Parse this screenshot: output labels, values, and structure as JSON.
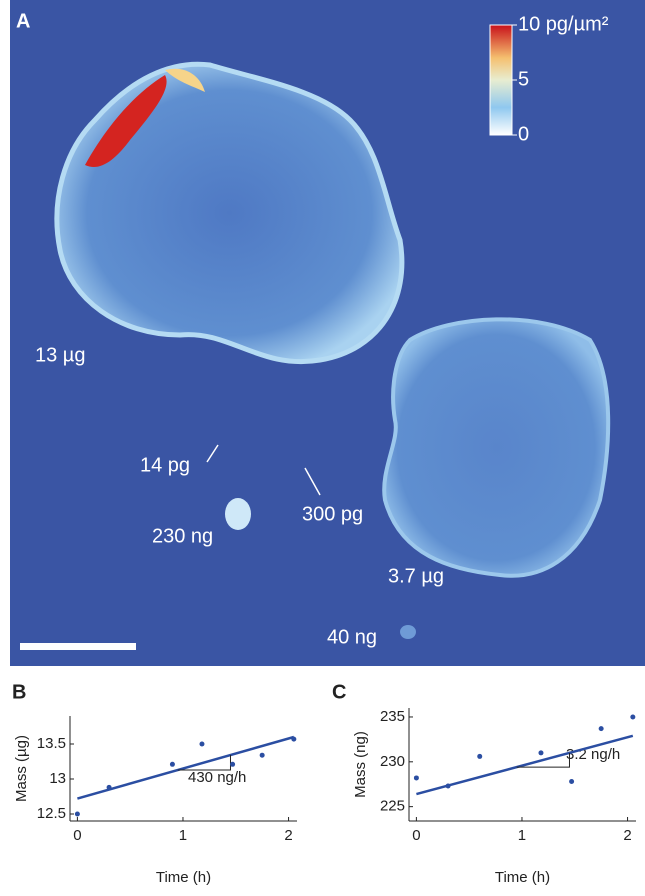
{
  "panel_a": {
    "label": "A",
    "colorbar": {
      "lim": [
        0,
        10
      ],
      "ticks": [
        0,
        5,
        {
          "value": 10,
          "label": "10 pg/µm²"
        }
      ]
    },
    "annotations": [
      "13 µg",
      "14 pg",
      "300 pg",
      "230 ng",
      "3.7 µg",
      "40 ng"
    ]
  },
  "chart_data": [
    {
      "type": "scatter",
      "label": "B",
      "xlabel": "Time (h)",
      "ylabel": "Mass (µg)",
      "color": "#2b4ea2",
      "x": [
        0,
        0.3,
        0.9,
        1.18,
        1.47,
        1.75,
        2.05
      ],
      "values": [
        12.5,
        12.88,
        13.21,
        13.5,
        13.21,
        13.34,
        13.57
      ],
      "fit": {
        "x": [
          0,
          2.05
        ],
        "values": [
          12.72,
          13.6
        ]
      },
      "annotation": "430 ng/h",
      "xlim": [
        -0.07,
        2.08
      ],
      "xticks": [
        0,
        1,
        2
      ],
      "ylim": [
        12.4,
        13.9
      ],
      "yticks": [
        12.5,
        13,
        13.5
      ]
    },
    {
      "type": "scatter",
      "label": "C",
      "xlabel": "Time (h)",
      "ylabel": "Mass (ng)",
      "color": "#2b4ea2",
      "x": [
        0,
        0.3,
        0.6,
        1.18,
        1.47,
        1.75,
        2.05
      ],
      "values": [
        228.2,
        227.3,
        230.6,
        231.0,
        227.8,
        233.7,
        235.0
      ],
      "fit": {
        "x": [
          0,
          2.05
        ],
        "values": [
          226.4,
          232.9
        ]
      },
      "annotation": "3.2 ng/h",
      "xlim": [
        -0.07,
        2.08
      ],
      "xticks": [
        0,
        1,
        2
      ],
      "ylim": [
        223.4,
        236
      ],
      "yticks": [
        225,
        230,
        235
      ]
    }
  ]
}
